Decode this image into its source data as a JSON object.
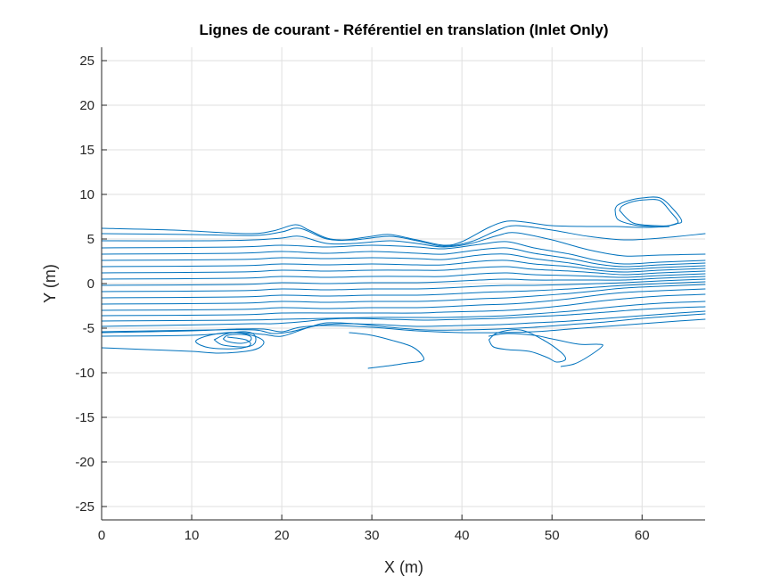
{
  "chart_data": {
    "type": "line",
    "title": "Lignes de courant - Référentiel en translation (Inlet Only)",
    "xlabel": "X (m)",
    "ylabel": "Y (m)",
    "xlim": [
      0,
      67
    ],
    "ylim": [
      -26.5,
      26.5
    ],
    "xticks": [
      0,
      10,
      20,
      30,
      40,
      50,
      60
    ],
    "yticks": [
      -25,
      -20,
      -15,
      -10,
      -5,
      0,
      5,
      10,
      15,
      20,
      25
    ],
    "grid": true,
    "color": "#0072BD",
    "series": [
      {
        "x": [
          0,
          8,
          16,
          19,
          21.5,
          23,
          25,
          27,
          30,
          32,
          35,
          38,
          40,
          43,
          45,
          47,
          50,
          54,
          57,
          60,
          63
        ],
        "y": [
          6.2,
          6,
          5.6,
          5.9,
          6.6,
          6,
          5.1,
          4.9,
          5.3,
          5.5,
          4.9,
          4.3,
          4.7,
          6.3,
          7,
          6.9,
          6.5,
          6.4,
          6.4,
          6.3,
          6.4
        ]
      },
      {
        "x": [
          0,
          10,
          17,
          20,
          22,
          25,
          28,
          32,
          35,
          38,
          41,
          44,
          46,
          50,
          54,
          58,
          62,
          67
        ],
        "y": [
          5.6,
          5.5,
          5.4,
          5.8,
          6.2,
          5,
          4.9,
          5.3,
          4.8,
          4.2,
          4.7,
          6,
          6.5,
          6,
          5.3,
          4.9,
          5.1,
          5.6
        ]
      },
      {
        "x": [
          0,
          12,
          17,
          20,
          22,
          25,
          28,
          32,
          35,
          38,
          41,
          44,
          46,
          50,
          54,
          58,
          62,
          67
        ],
        "y": [
          4.8,
          4.8,
          4.9,
          5.1,
          5.3,
          4.5,
          4.5,
          4.8,
          4.5,
          4.1,
          4.5,
          5.4,
          5.7,
          4.9,
          3.8,
          3.1,
          3.2,
          3.3
        ]
      },
      {
        "x": [
          0,
          15,
          20,
          25,
          30,
          35,
          38,
          42,
          45,
          48,
          52,
          55,
          58,
          62,
          67
        ],
        "y": [
          4,
          4.1,
          4.3,
          4.1,
          4.3,
          4.1,
          3.9,
          4.4,
          4.7,
          4,
          3.3,
          2.6,
          2.2,
          2.4,
          2.6
        ]
      },
      {
        "x": [
          0,
          15,
          20,
          25,
          30,
          35,
          38,
          42,
          45,
          48,
          52,
          55,
          58,
          62,
          67
        ],
        "y": [
          3.3,
          3.4,
          3.6,
          3.4,
          3.6,
          3.4,
          3.3,
          3.8,
          4,
          3.4,
          2.8,
          2.2,
          1.9,
          2.1,
          2.3
        ]
      },
      {
        "x": [
          0,
          15,
          20,
          25,
          30,
          35,
          38,
          42,
          45,
          48,
          52,
          55,
          58,
          62,
          67
        ],
        "y": [
          2.6,
          2.7,
          2.9,
          2.8,
          2.9,
          2.8,
          2.7,
          3.2,
          3.3,
          2.8,
          2.3,
          1.8,
          1.6,
          1.8,
          2
        ]
      },
      {
        "x": [
          0,
          15,
          20,
          25,
          30,
          35,
          38,
          42,
          45,
          48,
          52,
          55,
          58,
          62,
          67
        ],
        "y": [
          1.9,
          2,
          2.2,
          2.1,
          2.2,
          2.1,
          2.1,
          2.5,
          2.6,
          2.2,
          1.9,
          1.5,
          1.3,
          1.5,
          1.7
        ]
      },
      {
        "x": [
          0,
          15,
          20,
          25,
          30,
          35,
          38,
          42,
          45,
          48,
          52,
          55,
          58,
          62,
          67
        ],
        "y": [
          1.2,
          1.3,
          1.5,
          1.4,
          1.5,
          1.5,
          1.5,
          1.8,
          1.9,
          1.6,
          1.4,
          1.2,
          1,
          1.2,
          1.4
        ]
      },
      {
        "x": [
          0,
          15,
          20,
          25,
          30,
          35,
          38,
          42,
          45,
          48,
          52,
          55,
          58,
          62,
          67
        ],
        "y": [
          0.5,
          0.6,
          0.8,
          0.7,
          0.8,
          0.8,
          0.8,
          1.1,
          1.2,
          1,
          0.9,
          0.8,
          0.7,
          0.9,
          1.1
        ]
      },
      {
        "x": [
          0,
          15,
          20,
          25,
          30,
          35,
          38,
          42,
          45,
          48,
          52,
          55,
          58,
          62,
          67
        ],
        "y": [
          -0.2,
          -0.1,
          0.1,
          0,
          0.1,
          0.1,
          0.2,
          0.4,
          0.5,
          0.4,
          0.4,
          0.4,
          0.4,
          0.6,
          0.8
        ]
      },
      {
        "x": [
          0,
          15,
          20,
          25,
          30,
          35,
          38,
          42,
          45,
          48,
          52,
          55,
          58,
          62,
          67
        ],
        "y": [
          -0.9,
          -0.8,
          -0.6,
          -0.7,
          -0.6,
          -0.6,
          -0.5,
          -0.3,
          -0.2,
          -0.2,
          -0.1,
          0,
          0.1,
          0.3,
          0.5
        ]
      },
      {
        "x": [
          0,
          15,
          20,
          25,
          30,
          35,
          38,
          42,
          45,
          48,
          52,
          55,
          58,
          62,
          67
        ],
        "y": [
          -1.6,
          -1.5,
          -1.3,
          -1.4,
          -1.3,
          -1.3,
          -1.2,
          -1,
          -0.9,
          -0.8,
          -0.6,
          -0.4,
          -0.2,
          0,
          0.2
        ]
      },
      {
        "x": [
          0,
          15,
          20,
          25,
          30,
          35,
          38,
          42,
          45,
          48,
          52,
          55,
          58,
          62,
          67
        ],
        "y": [
          -2.3,
          -2.2,
          -2,
          -2.1,
          -2,
          -2,
          -1.9,
          -1.7,
          -1.6,
          -1.4,
          -1.1,
          -0.8,
          -0.5,
          -0.3,
          -0.1
        ]
      },
      {
        "x": [
          0,
          15,
          20,
          25,
          30,
          35,
          38,
          42,
          45,
          48,
          52,
          55,
          58,
          62,
          67
        ],
        "y": [
          -3,
          -2.9,
          -2.7,
          -2.8,
          -2.7,
          -2.7,
          -2.6,
          -2.4,
          -2.3,
          -2.1,
          -1.7,
          -1.3,
          -1,
          -0.8,
          -0.6
        ]
      },
      {
        "x": [
          0,
          15,
          20,
          25,
          30,
          35,
          38,
          42,
          45,
          48,
          52,
          55,
          58,
          62,
          67
        ],
        "y": [
          -3.6,
          -3.5,
          -3.3,
          -3.3,
          -3.3,
          -3.3,
          -3.2,
          -3.1,
          -3,
          -2.8,
          -2.4,
          -2,
          -1.7,
          -1.4,
          -1.2
        ]
      },
      {
        "x": [
          0,
          15,
          20,
          25,
          30,
          35,
          38,
          42,
          45,
          48,
          52,
          55,
          58,
          62,
          67
        ],
        "y": [
          -4.2,
          -4.1,
          -4,
          -3.9,
          -3.8,
          -3.8,
          -3.8,
          -3.7,
          -3.6,
          -3.4,
          -3.1,
          -2.8,
          -2.5,
          -2.2,
          -2
        ]
      },
      {
        "x": [
          0,
          12,
          17,
          19,
          22,
          25,
          28,
          32,
          36,
          40,
          44,
          48,
          52,
          56,
          60,
          64,
          67
        ],
        "y": [
          -4.8,
          -4.6,
          -4.5,
          -4.5,
          -4.3,
          -4,
          -3.9,
          -4,
          -4.1,
          -4,
          -3.9,
          -3.7,
          -3.5,
          -3.2,
          -2.9,
          -2.7,
          -2.6
        ]
      },
      {
        "x": [
          0,
          12,
          17,
          19,
          21,
          24,
          27,
          31,
          35,
          40,
          44,
          48,
          52,
          56,
          60,
          64,
          67
        ],
        "y": [
          -5.4,
          -5.2,
          -5.2,
          -5.6,
          -5.4,
          -4.7,
          -4.5,
          -4.6,
          -4.8,
          -4.7,
          -4.6,
          -4.4,
          -4.2,
          -3.9,
          -3.6,
          -3.3,
          -3.1
        ]
      },
      {
        "x": [
          0,
          10,
          15,
          18,
          20,
          23,
          25,
          28,
          32,
          36,
          40,
          44,
          48,
          52,
          56,
          60,
          64,
          67
        ],
        "y": [
          -5.9,
          -5.8,
          -5.5,
          -5.7,
          -5.9,
          -4.9,
          -4.4,
          -4.5,
          -4.9,
          -5.2,
          -5.2,
          -5.1,
          -4.9,
          -4.6,
          -4.3,
          -3.9,
          -3.6,
          -3.4
        ]
      },
      {
        "x": [
          0,
          10,
          15,
          18,
          20,
          22,
          25,
          30,
          35,
          40,
          44,
          48,
          52,
          56,
          60,
          64,
          67
        ],
        "y": [
          -5.5,
          -5.3,
          -5.1,
          -5.1,
          -5.4,
          -4.9,
          -4.7,
          -4.9,
          -5.3,
          -5.5,
          -5.5,
          -5.4,
          -5.1,
          -4.8,
          -4.5,
          -4.2,
          -4
        ]
      },
      {
        "x": [
          0,
          5,
          10,
          13,
          16,
          17.5,
          18,
          17,
          15,
          13,
          11,
          10.5,
          12,
          15,
          16.5,
          16,
          14
        ],
        "y": [
          -7.2,
          -7.4,
          -7.6,
          -7.8,
          -7.6,
          -7.2,
          -6.5,
          -5.9,
          -5.5,
          -5.6,
          -6.1,
          -6.6,
          -7.2,
          -7.3,
          -6.9,
          -6.3,
          -6
        ]
      },
      {
        "x": [
          13.5,
          14,
          15.5,
          16.5,
          16.5,
          15.5,
          14,
          13.5
        ],
        "y": [
          -6.2,
          -6.5,
          -6.7,
          -6.4,
          -5.9,
          -5.7,
          -5.8,
          -6.2
        ]
      },
      {
        "x": [
          12.5,
          13.5,
          16,
          17,
          17,
          16,
          14,
          12.5
        ],
        "y": [
          -6.3,
          -6.9,
          -7.1,
          -6.7,
          -5.8,
          -5.4,
          -5.6,
          -6.3
        ]
      },
      {
        "x": [
          29.6,
          32,
          34,
          35.5,
          35.7,
          34.5,
          32,
          30,
          28.5,
          27.5
        ],
        "y": [
          -9.5,
          -9.2,
          -8.9,
          -8.7,
          -8.2,
          -7.1,
          -6.3,
          -5.8,
          -5.6,
          -5.5
        ]
      },
      {
        "x": [
          43,
          43.5,
          45,
          47.5,
          49.5,
          50.5,
          51.5,
          51,
          49,
          46.5,
          44,
          43
        ],
        "y": [
          -6.3,
          -7.1,
          -7.4,
          -7.6,
          -8.3,
          -8.8,
          -8.5,
          -7.7,
          -6.3,
          -5.2,
          -5.5,
          -6.3
        ]
      },
      {
        "x": [
          51,
          52.5,
          54,
          55.6,
          55,
          53,
          50,
          48,
          45,
          43
        ],
        "y": [
          -9.3,
          -9,
          -8.2,
          -7,
          -6.8,
          -6.8,
          -6.2,
          -5.8,
          -5.6,
          -5.9
        ]
      },
      {
        "x": [
          57,
          57.3,
          59,
          61,
          62.5,
          63.7,
          64.4,
          63.5,
          62,
          60,
          58.5,
          57.3,
          57
        ],
        "y": [
          8.3,
          7.2,
          6.6,
          6.4,
          6.4,
          6.7,
          7,
          8.3,
          9.6,
          9.6,
          9.3,
          8.8,
          8.3
        ]
      },
      {
        "x": [
          57.5,
          59,
          61.5,
          63,
          64,
          63.2,
          62,
          60.5,
          59,
          57.8,
          57.5
        ],
        "y": [
          8.2,
          6.8,
          6.5,
          6.5,
          6.9,
          8,
          9.3,
          9.4,
          9.2,
          8.7,
          8.2
        ]
      }
    ]
  }
}
